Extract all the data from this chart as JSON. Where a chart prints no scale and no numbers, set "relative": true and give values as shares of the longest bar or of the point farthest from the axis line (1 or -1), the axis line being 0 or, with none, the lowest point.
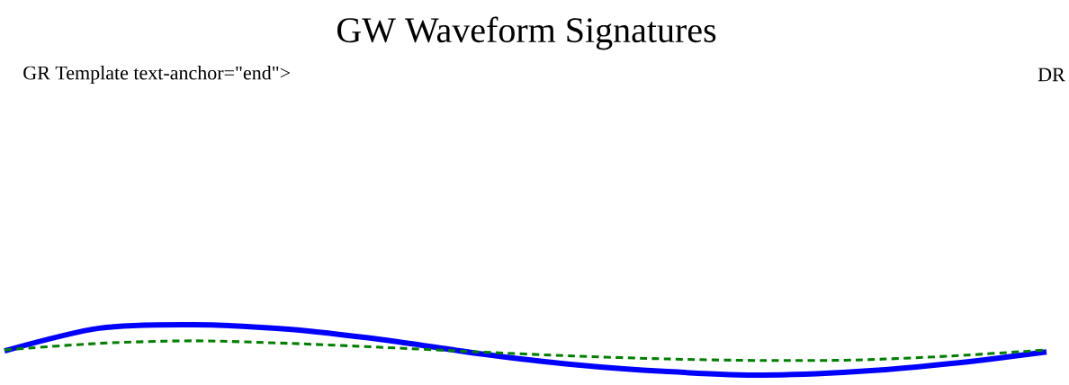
{
  "chart_data": {
    "type": "line",
    "title": "GW Waveform Signatures",
    "relative": true,
    "annotations": [
      "GR Template text-anchor=\"end\">",
      "DR"
    ],
    "categories": [
      null,
      null,
      null,
      null,
      null,
      null,
      null,
      null,
      null,
      null,
      null,
      null
    ],
    "series": [
      {
        "color": "#0000ff",
        "line_style": "solid",
        "values": [
          0.48,
          0.93,
          1.0,
          0.91,
          0.7,
          0.43,
          0.21,
          0.07,
          0.0,
          0.07,
          0.23,
          0.46
        ]
      },
      {
        "color": "#008000",
        "line_style": "dashed",
        "values": [
          0.5,
          0.63,
          0.68,
          0.63,
          0.55,
          0.46,
          0.38,
          0.32,
          0.29,
          0.3,
          0.38,
          0.5
        ]
      }
    ],
    "marker": "none"
  }
}
